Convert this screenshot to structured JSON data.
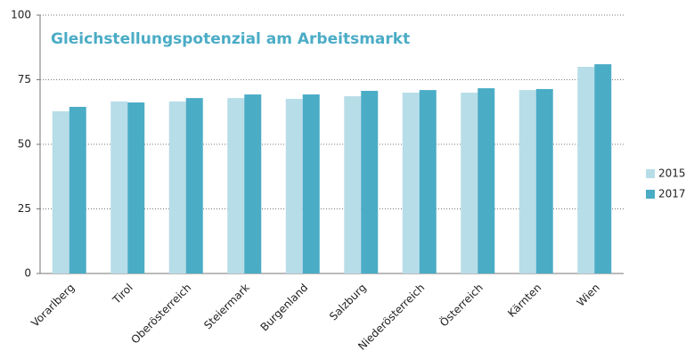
{
  "chart_data": {
    "type": "bar",
    "title": "Gleichstellungspotenzial am Arbeitsmarkt",
    "categories": [
      "Vorarlberg",
      "Tirol",
      "Oberösterreich",
      "Steiermark",
      "Burgenland",
      "Salzburg",
      "Niederösterreich",
      "Österreich",
      "Kärnten",
      "Wien"
    ],
    "series": [
      {
        "name": "2015",
        "color": "#b7dde8",
        "values": [
          62.8,
          66.6,
          66.6,
          67.9,
          67.6,
          68.6,
          70.0,
          70.0,
          71.0,
          80.0
        ]
      },
      {
        "name": "2017",
        "color": "#4bacc6",
        "values": [
          64.5,
          66.2,
          67.9,
          69.3,
          69.3,
          70.7,
          71.0,
          71.7,
          71.4,
          81.0
        ]
      }
    ],
    "ylim": [
      0,
      100
    ],
    "yticks": [
      0,
      25,
      50,
      75,
      100
    ],
    "grid": true,
    "legend": "right"
  }
}
